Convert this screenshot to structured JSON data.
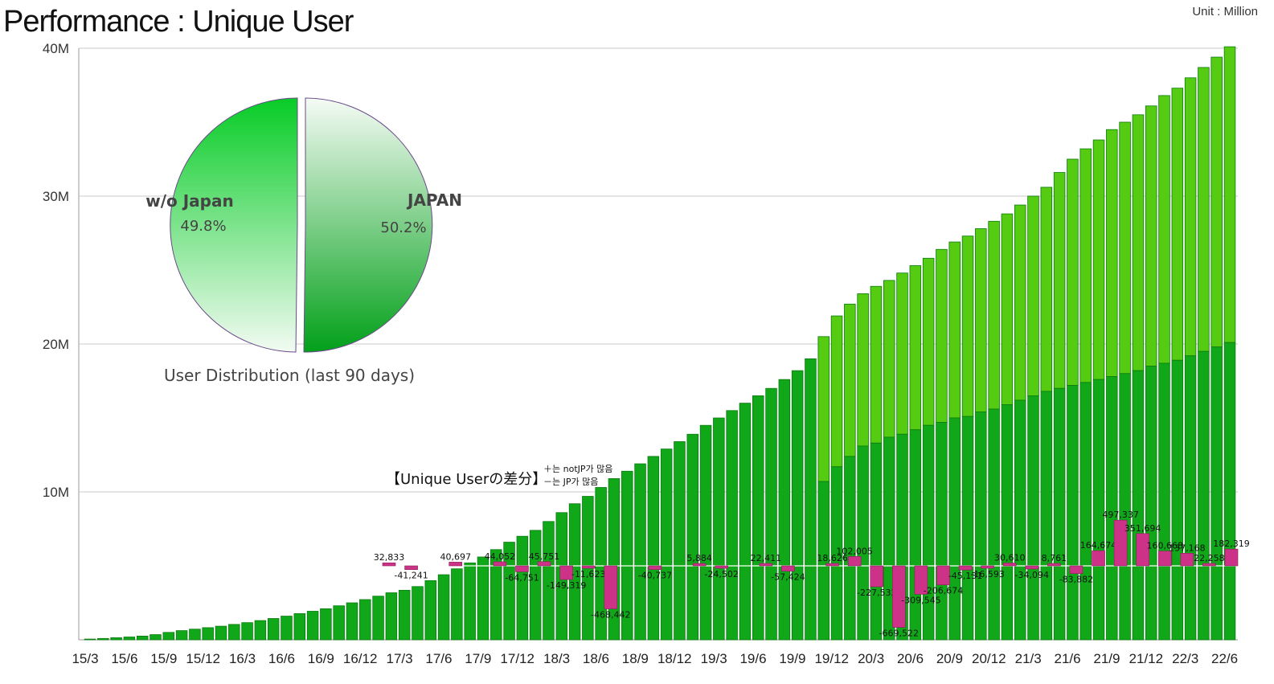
{
  "header": {
    "title": "Performance : Unique User",
    "unit": "Unit : Million"
  },
  "pie": {
    "caption": "User Distribution (last 90 days)",
    "slices": [
      {
        "label": "w/o Japan",
        "percent_label": "49.8%",
        "value": 49.8,
        "color_light": "#f2fbf2",
        "color_dark": "#07cc26"
      },
      {
        "label": "JAPAN",
        "percent_label": "50.2%",
        "value": 50.2,
        "color_light": "#f5fbf5",
        "color_dark": "#02a019"
      }
    ]
  },
  "diff_panel": {
    "title": "【Unique Userの差分】",
    "note_plus": "＋는 notJP가 많음",
    "note_minus": "－는 JP가 많음",
    "bar_color": "#cc3388"
  },
  "chart_data": {
    "type": "bar",
    "title": "Performance : Unique User",
    "unit": "Unit : Million",
    "ylim": [
      0,
      40
    ],
    "y_ticks": [
      10,
      20,
      30,
      40
    ],
    "y_tick_labels": [
      "10M",
      "20M",
      "30M",
      "40M"
    ],
    "x_tick_labels": [
      "15/3",
      "15/6",
      "15/9",
      "15/12",
      "16/3",
      "16/6",
      "16/9",
      "16/12",
      "17/3",
      "17/6",
      "17/9",
      "17/12",
      "18/3",
      "18/6",
      "18/9",
      "18/12",
      "19/3",
      "19/6",
      "19/9",
      "19/12",
      "20/3",
      "20/6",
      "20/9",
      "20/12",
      "21/3",
      "21/6",
      "21/9",
      "21/12",
      "22/3",
      "22/6"
    ],
    "series_colors": {
      "upper": "#55cc11",
      "lower": "#10a818",
      "edge": "#0b7a10"
    },
    "totals_million": [
      0.05,
      0.09,
      0.14,
      0.19,
      0.25,
      0.35,
      0.5,
      0.62,
      0.72,
      0.82,
      0.92,
      1.04,
      1.16,
      1.3,
      1.44,
      1.6,
      1.77,
      1.93,
      2.1,
      2.3,
      2.5,
      2.72,
      2.95,
      3.18,
      3.35,
      3.6,
      4.0,
      4.4,
      4.8,
      5.2,
      5.6,
      6.1,
      6.6,
      7.0,
      7.4,
      8.0,
      8.6,
      9.2,
      9.7,
      10.3,
      10.9,
      11.4,
      11.9,
      12.4,
      12.9,
      13.4,
      13.9,
      14.5,
      15.0,
      15.5,
      16.0,
      16.5,
      17.0,
      17.6,
      18.2,
      19.0,
      20.5,
      21.9,
      22.7,
      23.4,
      23.9,
      24.3,
      24.8,
      25.3,
      25.8,
      26.4,
      26.9,
      27.3,
      27.8,
      28.3,
      28.8,
      29.4,
      30.0,
      30.6,
      31.6,
      32.5,
      33.2,
      33.8,
      34.5,
      35.0,
      35.5,
      36.1,
      36.8,
      37.3,
      38.0,
      38.7,
      39.4,
      40.1
    ],
    "japan_share_million": [
      0,
      0,
      0,
      0,
      0,
      0,
      0,
      0,
      0,
      0,
      0,
      0,
      0,
      0,
      0,
      0,
      0,
      0,
      0,
      0,
      0,
      0,
      0,
      0,
      0,
      0,
      0,
      0,
      0,
      0,
      0,
      0,
      0,
      0,
      0,
      0,
      0,
      0,
      0,
      0,
      0,
      0,
      0,
      0,
      0,
      0,
      0,
      0,
      0,
      0,
      0,
      0,
      0,
      0,
      0,
      0,
      10.7,
      11.7,
      12.4,
      13.1,
      13.3,
      13.7,
      13.9,
      14.2,
      14.5,
      14.7,
      15.0,
      15.1,
      15.4,
      15.6,
      15.9,
      16.2,
      16.5,
      16.8,
      17.0,
      17.2,
      17.4,
      17.6,
      17.8,
      18.0,
      18.2,
      18.5,
      18.7,
      18.9,
      19.2,
      19.5,
      19.8,
      20.1
    ],
    "diff": {
      "values": [
        32833,
        -41241,
        0,
        40697,
        0,
        44052,
        -64751,
        45751,
        -149319,
        -11623,
        -468442,
        0,
        -40737,
        0,
        5884,
        -24502,
        0,
        22411,
        -57424,
        0,
        18626,
        102005,
        -227532,
        -669522,
        -309545,
        -206674,
        -45131,
        -16593,
        30610,
        -34094,
        8761,
        -83882,
        164674,
        497337,
        351694,
        160668,
        137168,
        22258,
        182319
      ],
      "labels": [
        "32,833",
        "-41,241",
        "",
        "40,697",
        "",
        "44,052",
        "-64,751",
        "45,751",
        "-149,319",
        "-11,623",
        "-468,442",
        "",
        "-40,737",
        "",
        "5,884",
        "-24,502",
        "",
        "22,411",
        "-57,424",
        "",
        "18,626",
        "102,005",
        "-227,532",
        "-669,522",
        "-309,545",
        "-206,674",
        "-45,131",
        "-16,593",
        "30,610",
        "-34,094",
        "8,761",
        "-83,882",
        "164,674",
        "497,337",
        "351,694",
        "160,668",
        "137,168",
        "22,258",
        "182,319"
      ]
    }
  }
}
